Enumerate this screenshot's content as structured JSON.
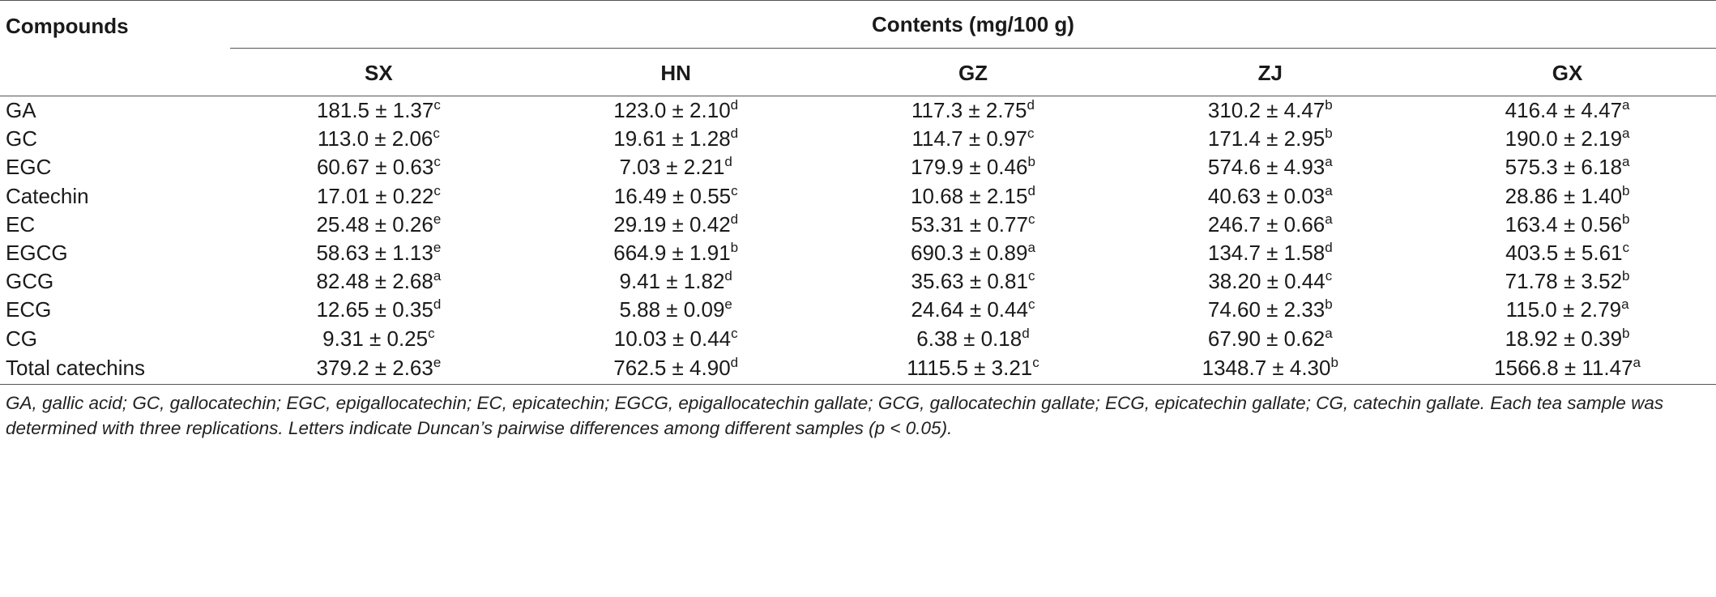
{
  "table": {
    "first_header": "Compounds",
    "group_header": "Contents (mg/100 g)",
    "columns": [
      "SX",
      "HN",
      "GZ",
      "ZJ",
      "GX"
    ],
    "rows": [
      {
        "name": "GA",
        "cells": [
          {
            "v": "181.5 ± 1.37",
            "s": "c"
          },
          {
            "v": "123.0 ± 2.10",
            "s": "d"
          },
          {
            "v": "117.3 ± 2.75",
            "s": "d"
          },
          {
            "v": "310.2 ± 4.47",
            "s": "b"
          },
          {
            "v": "416.4 ± 4.47",
            "s": "a"
          }
        ]
      },
      {
        "name": "GC",
        "cells": [
          {
            "v": "113.0 ± 2.06",
            "s": "c"
          },
          {
            "v": "19.61 ± 1.28",
            "s": "d"
          },
          {
            "v": "114.7 ± 0.97",
            "s": "c"
          },
          {
            "v": "171.4 ± 2.95",
            "s": "b"
          },
          {
            "v": "190.0 ± 2.19",
            "s": "a"
          }
        ]
      },
      {
        "name": "EGC",
        "cells": [
          {
            "v": "60.67 ± 0.63",
            "s": "c"
          },
          {
            "v": "7.03 ± 2.21",
            "s": "d"
          },
          {
            "v": "179.9 ± 0.46",
            "s": "b"
          },
          {
            "v": "574.6 ± 4.93",
            "s": "a"
          },
          {
            "v": "575.3 ± 6.18",
            "s": "a"
          }
        ]
      },
      {
        "name": "Catechin",
        "cells": [
          {
            "v": "17.01 ± 0.22",
            "s": "c"
          },
          {
            "v": "16.49 ± 0.55",
            "s": "c"
          },
          {
            "v": "10.68 ± 2.15",
            "s": "d"
          },
          {
            "v": "40.63 ± 0.03",
            "s": "a"
          },
          {
            "v": "28.86 ± 1.40",
            "s": "b"
          }
        ]
      },
      {
        "name": "EC",
        "cells": [
          {
            "v": "25.48 ± 0.26",
            "s": "e"
          },
          {
            "v": "29.19 ± 0.42",
            "s": "d"
          },
          {
            "v": "53.31 ± 0.77",
            "s": "c"
          },
          {
            "v": "246.7 ± 0.66",
            "s": "a"
          },
          {
            "v": "163.4 ± 0.56",
            "s": "b"
          }
        ]
      },
      {
        "name": "EGCG",
        "cells": [
          {
            "v": "58.63 ± 1.13",
            "s": "e"
          },
          {
            "v": "664.9 ± 1.91",
            "s": "b"
          },
          {
            "v": "690.3 ± 0.89",
            "s": "a"
          },
          {
            "v": "134.7 ± 1.58",
            "s": "d"
          },
          {
            "v": "403.5 ± 5.61",
            "s": "c"
          }
        ]
      },
      {
        "name": "GCG",
        "cells": [
          {
            "v": "82.48 ± 2.68",
            "s": "a"
          },
          {
            "v": "9.41 ± 1.82",
            "s": "d"
          },
          {
            "v": "35.63 ± 0.81",
            "s": "c"
          },
          {
            "v": "38.20 ± 0.44",
            "s": "c"
          },
          {
            "v": "71.78 ± 3.52",
            "s": "b"
          }
        ]
      },
      {
        "name": "ECG",
        "cells": [
          {
            "v": "12.65 ± 0.35",
            "s": "d"
          },
          {
            "v": "5.88 ± 0.09",
            "s": "e"
          },
          {
            "v": "24.64 ± 0.44",
            "s": "c"
          },
          {
            "v": "74.60 ± 2.33",
            "s": "b"
          },
          {
            "v": "115.0 ± 2.79",
            "s": "a"
          }
        ]
      },
      {
        "name": "CG",
        "cells": [
          {
            "v": "9.31 ± 0.25",
            "s": "c"
          },
          {
            "v": "10.03 ± 0.44",
            "s": "c"
          },
          {
            "v": "6.38 ± 0.18",
            "s": "d"
          },
          {
            "v": "67.90 ± 0.62",
            "s": "a"
          },
          {
            "v": "18.92 ± 0.39",
            "s": "b"
          }
        ]
      },
      {
        "name": "Total catechins",
        "cells": [
          {
            "v": "379.2 ± 2.63",
            "s": "e"
          },
          {
            "v": "762.5 ± 4.90",
            "s": "d"
          },
          {
            "v": "1115.5 ± 3.21",
            "s": "c"
          },
          {
            "v": "1348.7 ± 4.30",
            "s": "b"
          },
          {
            "v": "1566.8 ± 11.47",
            "s": "a"
          }
        ]
      }
    ]
  },
  "footnote": "GA, gallic acid; GC, gallocatechin; EGC, epigallocatechin; EC, epicatechin; EGCG, epigallocatechin gallate; GCG, gallocatechin gallate; ECG, epicatechin gallate; CG, catechin gallate. Each tea sample was determined with three replications. Letters indicate Duncan’s pairwise differences among different samples (p < 0.05)."
}
